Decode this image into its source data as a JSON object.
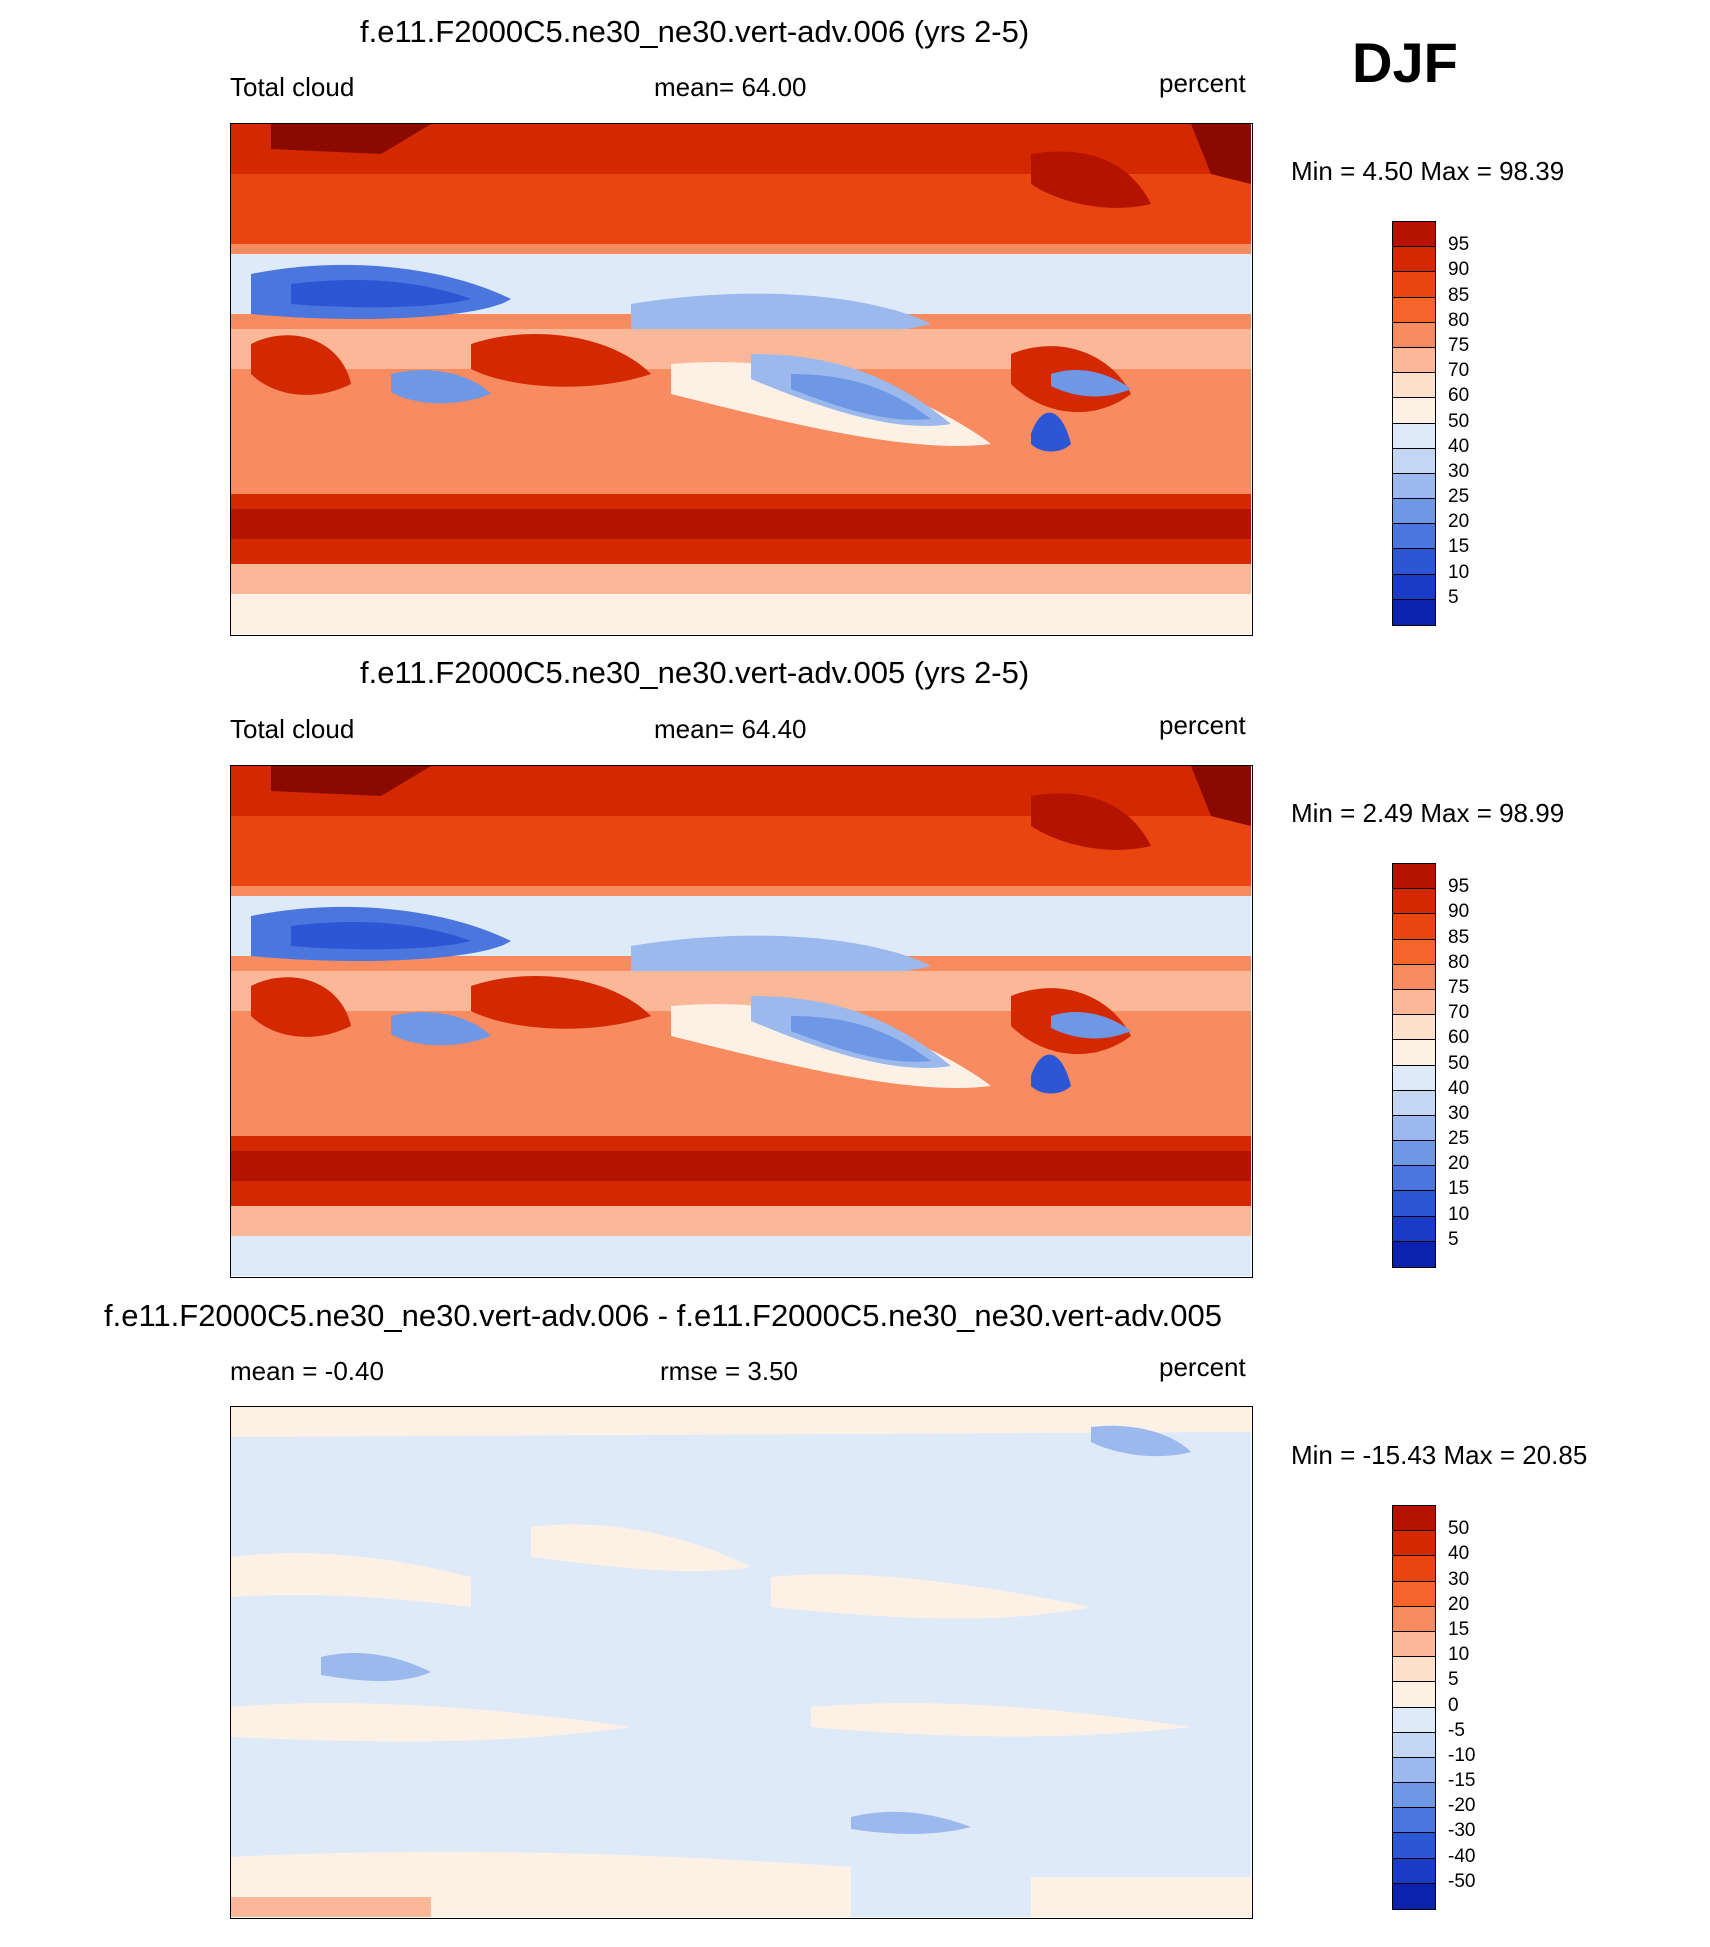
{
  "season": "DJF",
  "colors": {
    "abs": [
      "#8a0a00",
      "#b31300",
      "#d42800",
      "#e94510",
      "#f5642a",
      "#f88b60",
      "#fbb898",
      "#fde0cc",
      "#fdf1e6",
      "#dfeaf8",
      "#c3d6f2",
      "#9bb9ec",
      "#6e97e6",
      "#4a76de",
      "#2d56d4",
      "#1a3bc6",
      "#0b22ac",
      "#040d88"
    ],
    "diff": [
      "#8a0a00",
      "#b31300",
      "#d42800",
      "#e94510",
      "#f5642a",
      "#f88b60",
      "#fbb898",
      "#fde0cc",
      "#fdf1e6",
      "#dfeaf8",
      "#c3d6f2",
      "#9bb9ec",
      "#6e97e6",
      "#4a76de",
      "#2d56d4",
      "#1a3bc6",
      "#0b22ac",
      "#040d88"
    ]
  },
  "panels": [
    {
      "title": "f.e11.F2000C5.ne30_ne30.vert-adv.006 (yrs 2-5)",
      "left": "Total cloud",
      "center": "mean=  64.00",
      "right": "percent",
      "minmax": "Min =   4.50 Max =  98.39"
    },
    {
      "title": "f.e11.F2000C5.ne30_ne30.vert-adv.005 (yrs 2-5)",
      "left": "Total cloud",
      "center": "mean=  64.40",
      "right": "percent",
      "minmax": "Min =   2.49 Max =  98.99"
    },
    {
      "title": "f.e11.F2000C5.ne30_ne30.vert-adv.006 - f.e11.F2000C5.ne30_ne30.vert-adv.005",
      "left": "mean =  -0.40",
      "center": "rmse =   3.50",
      "right": "percent",
      "minmax": "Min = -15.43 Max =  20.85"
    }
  ],
  "colorbars": {
    "abs_labels": [
      "95",
      "90",
      "85",
      "80",
      "75",
      "70",
      "60",
      "50",
      "40",
      "30",
      "25",
      "20",
      "15",
      "10",
      "5"
    ],
    "diff_labels": [
      "50",
      "40",
      "30",
      "20",
      "15",
      "10",
      "5",
      "0",
      "-5",
      "-10",
      "-15",
      "-20",
      "-30",
      "-40",
      "-50"
    ]
  },
  "chart_data": [
    {
      "type": "heatmap",
      "title": "f.e11.F2000C5.ne30_ne30.vert-adv.006 (yrs 2-5)",
      "variable": "Total cloud",
      "units": "percent",
      "mean": 64.0,
      "min": 4.5,
      "max": 98.39,
      "levels": [
        5,
        10,
        15,
        20,
        25,
        30,
        40,
        50,
        60,
        70,
        75,
        80,
        85,
        90,
        95
      ],
      "colormap": "blue-white-red"
    },
    {
      "type": "heatmap",
      "title": "f.e11.F2000C5.ne30_ne30.vert-adv.005 (yrs 2-5)",
      "variable": "Total cloud",
      "units": "percent",
      "mean": 64.4,
      "min": 2.49,
      "max": 98.99,
      "levels": [
        5,
        10,
        15,
        20,
        25,
        30,
        40,
        50,
        60,
        70,
        75,
        80,
        85,
        90,
        95
      ],
      "colormap": "blue-white-red"
    },
    {
      "type": "heatmap",
      "title": "f.e11.F2000C5.ne30_ne30.vert-adv.006 - f.e11.F2000C5.ne30_ne30.vert-adv.005",
      "units": "percent",
      "mean": -0.4,
      "rmse": 3.5,
      "min": -15.43,
      "max": 20.85,
      "levels": [
        -50,
        -40,
        -30,
        -20,
        -15,
        -10,
        -5,
        0,
        5,
        10,
        15,
        20,
        30,
        40,
        50
      ],
      "colormap": "blue-white-red"
    }
  ]
}
